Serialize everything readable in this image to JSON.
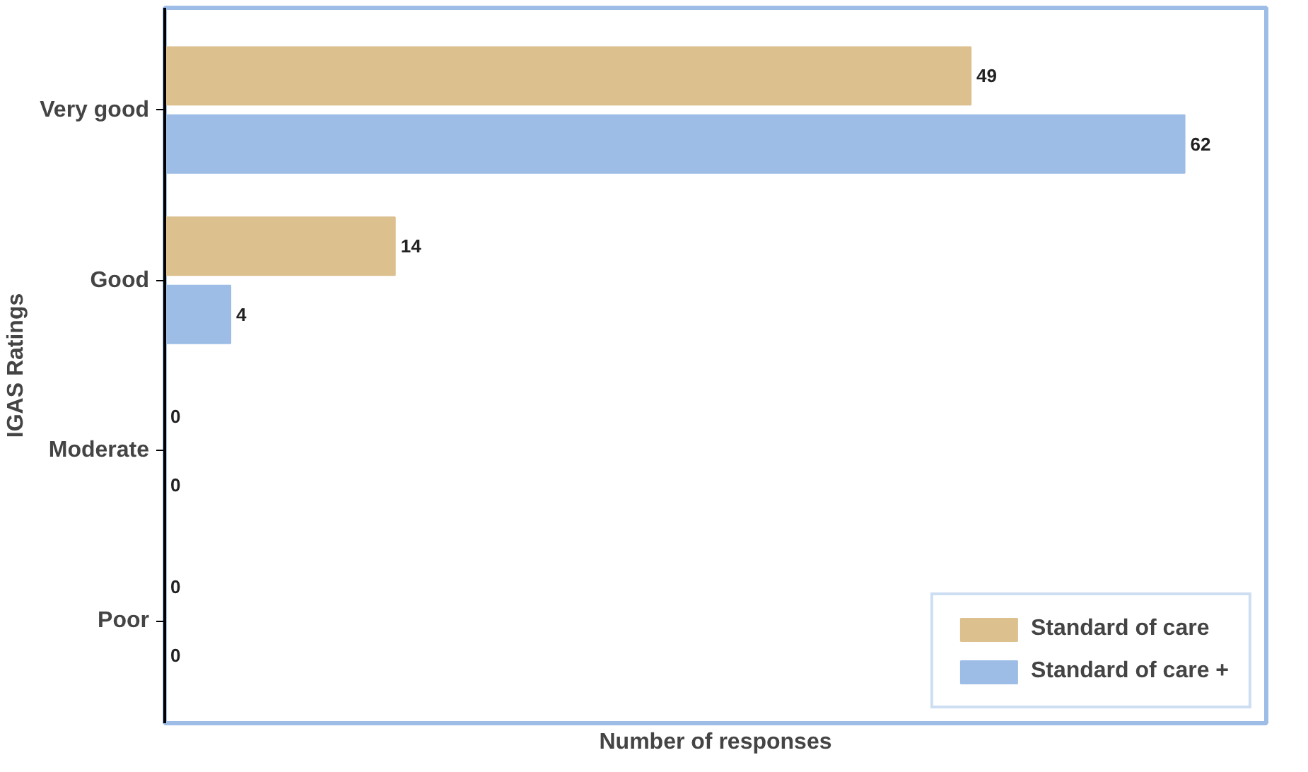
{
  "chart_data": {
    "type": "bar",
    "orientation": "horizontal",
    "xlabel": "Number of responses",
    "ylabel": "IGAS Ratings",
    "categories": [
      "Very good",
      "Good",
      "Moderate",
      "Poor"
    ],
    "series": [
      {
        "name": "Standard of care",
        "color": "#dcc08e",
        "values": [
          49,
          14,
          0,
          0
        ]
      },
      {
        "name": "Standard of care +",
        "color": "#9dbde6",
        "values": [
          62,
          4,
          0,
          0
        ]
      }
    ],
    "data_labels": true,
    "legend": "bottom right",
    "grid": false
  }
}
